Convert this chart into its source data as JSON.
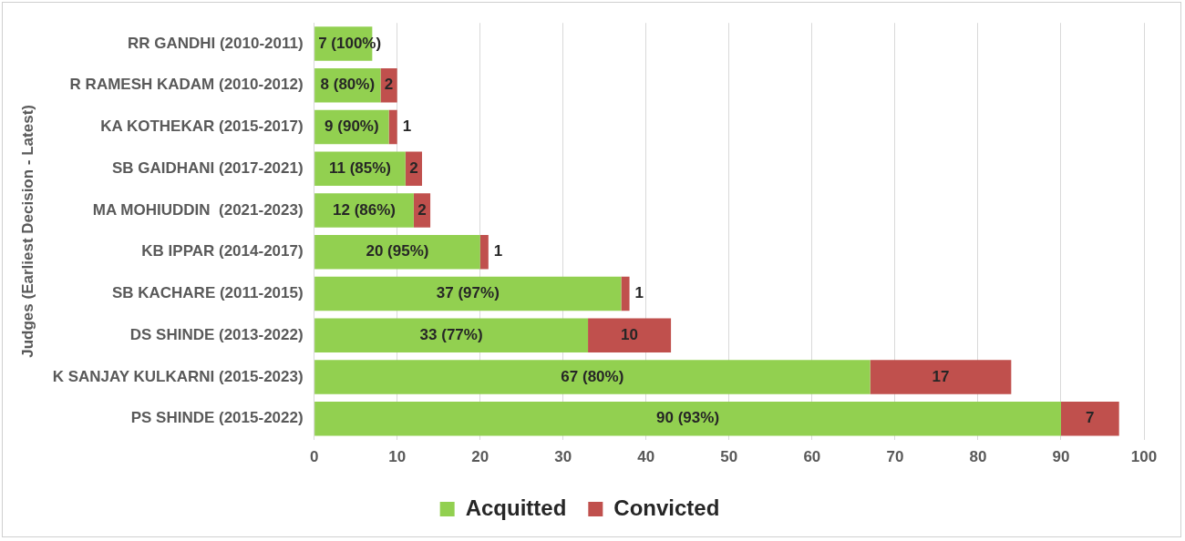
{
  "chart_data": {
    "type": "bar",
    "orientation": "horizontal",
    "stacked": true,
    "ylabel": "Judges (Earliest Decision - Latest)",
    "categories": [
      "RR GANDHI (2010-2011)",
      "R RAMESH KADAM (2010-2012)",
      "KA KOTHEKAR (2015-2017)",
      "SB GAIDHANI (2017-2021)",
      "MA MOHIUDDIN  (2021-2023)",
      "KB IPPAR (2014-2017)",
      "SB KACHARE (2011-2015)",
      "DS SHINDE (2013-2022)",
      "K SANJAY KULKARNI (2015-2023)",
      "PS SHINDE (2015-2022)"
    ],
    "series": [
      {
        "name": "Acquitted",
        "color": "#92d050",
        "values": [
          7,
          8,
          9,
          11,
          12,
          20,
          37,
          33,
          67,
          90
        ],
        "value_labels": [
          "7 (100%)",
          "8 (80%)",
          "9 (90%)",
          "11 (85%)",
          "12 (86%)",
          "20 (95%)",
          "37 (97%)",
          "33 (77%)",
          "67 (80%)",
          "90 (93%)"
        ]
      },
      {
        "name": "Convicted",
        "color": "#c0504d",
        "values": [
          0,
          2,
          1,
          2,
          2,
          1,
          1,
          10,
          17,
          7
        ],
        "value_labels": [
          null,
          "2",
          "1",
          "2",
          "2",
          "1",
          "1",
          "10",
          "17",
          "7"
        ]
      }
    ],
    "xlim": [
      0,
      100
    ],
    "xticks": [
      0,
      10,
      20,
      30,
      40,
      50,
      60,
      70,
      80,
      90,
      100
    ],
    "grid": "x",
    "legend": "bottom"
  }
}
